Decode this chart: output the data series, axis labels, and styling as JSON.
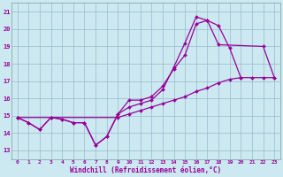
{
  "xlabel": "Windchill (Refroidissement éolien,°C)",
  "bg_color": "#cce8f0",
  "line_color": "#990099",
  "grid_color": "#aacccc",
  "ylim": [
    12.5,
    21.5
  ],
  "xlim": [
    -0.5,
    23.5
  ],
  "yticks": [
    13,
    14,
    15,
    16,
    17,
    18,
    19,
    20,
    21
  ],
  "xticks": [
    0,
    1,
    2,
    3,
    4,
    5,
    6,
    7,
    8,
    9,
    10,
    11,
    12,
    13,
    14,
    15,
    16,
    17,
    18,
    19,
    20,
    21,
    22,
    23
  ],
  "line1_x": [
    0,
    1,
    2,
    3,
    4,
    5,
    6,
    7,
    8,
    9,
    10,
    11,
    12,
    13,
    14,
    15,
    16,
    17,
    18,
    19,
    20
  ],
  "line1_y": [
    14.9,
    14.6,
    14.2,
    14.9,
    14.8,
    14.6,
    14.6,
    13.3,
    13.8,
    15.1,
    15.9,
    15.9,
    16.1,
    16.7,
    17.7,
    18.5,
    20.3,
    20.5,
    20.2,
    18.9,
    17.2
  ],
  "line2_x": [
    0,
    1,
    2,
    3,
    4,
    5,
    6,
    7,
    8,
    9,
    10,
    11,
    12,
    13,
    14,
    15,
    16,
    17,
    18,
    22,
    23
  ],
  "line2_y": [
    14.9,
    14.6,
    14.2,
    14.9,
    14.8,
    14.6,
    14.6,
    13.3,
    13.8,
    15.1,
    15.5,
    15.7,
    15.9,
    16.5,
    17.8,
    19.2,
    20.7,
    20.5,
    19.1,
    19.0,
    17.2
  ],
  "line3_x": [
    0,
    9,
    10,
    11,
    12,
    13,
    14,
    15,
    16,
    17,
    18,
    19,
    20,
    21,
    22,
    23
  ],
  "line3_y": [
    14.9,
    14.9,
    15.1,
    15.3,
    15.5,
    15.7,
    15.9,
    16.1,
    16.4,
    16.6,
    16.9,
    17.1,
    17.2,
    17.2,
    17.2,
    17.2
  ]
}
